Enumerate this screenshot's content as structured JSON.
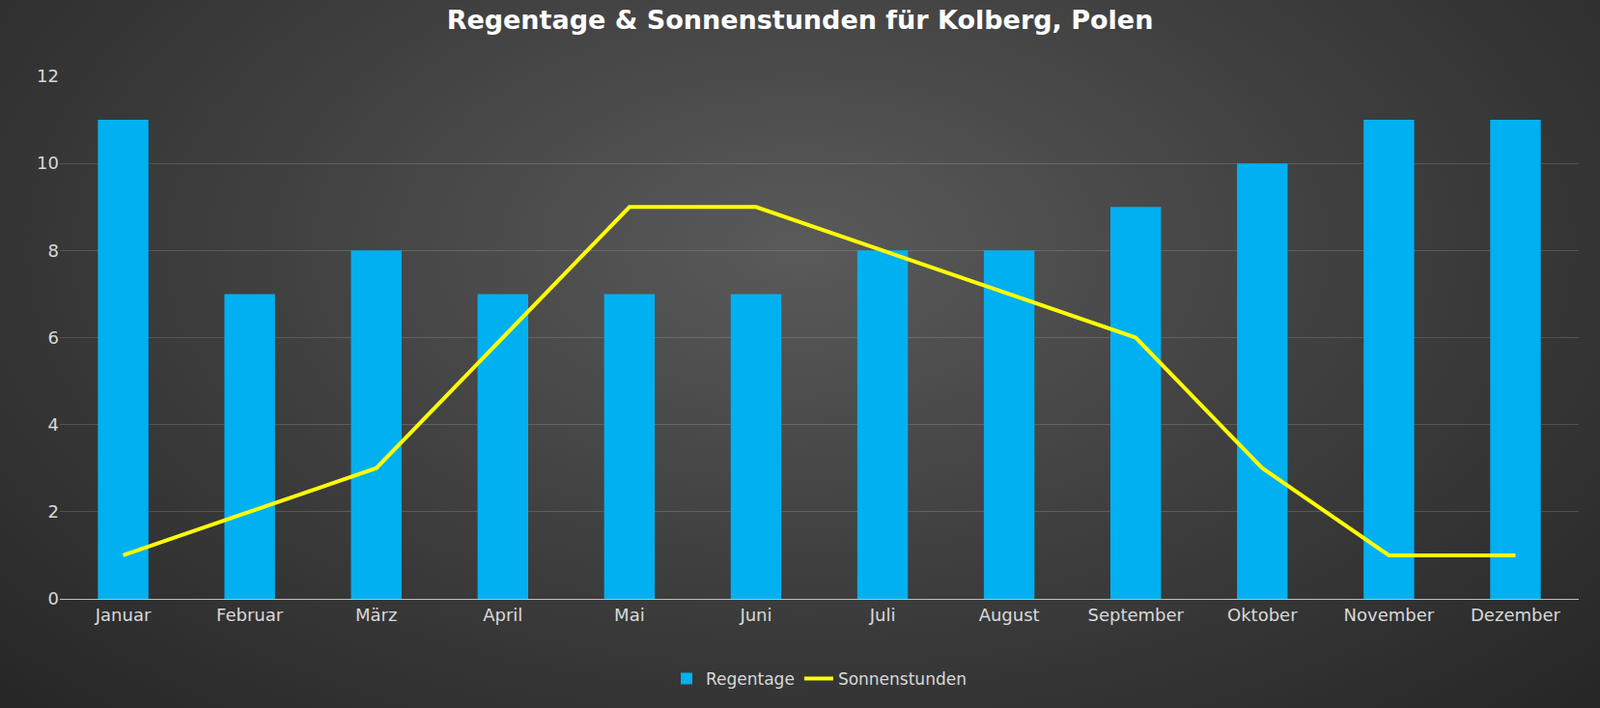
{
  "chart_data": {
    "type": "bar",
    "title": "Regentage & Sonnenstunden für Kolberg, Polen",
    "categories": [
      "Januar",
      "Februar",
      "März",
      "April",
      "Mai",
      "Juni",
      "Juli",
      "August",
      "September",
      "Oktober",
      "November",
      "Dezember"
    ],
    "series": [
      {
        "name": "Regentage",
        "type": "bar",
        "color": "#00b0f0",
        "values": [
          11,
          7,
          8,
          7,
          7,
          7,
          8,
          8,
          9,
          10,
          11,
          11
        ]
      },
      {
        "name": "Sonnenstunden",
        "type": "line",
        "color": "#ffff00",
        "values": [
          1,
          2,
          3,
          6,
          9,
          9,
          8,
          7,
          6,
          3,
          1,
          1
        ]
      }
    ],
    "ylim": [
      0,
      12
    ],
    "yticks": [
      0,
      2,
      4,
      6,
      8,
      10,
      12
    ],
    "grid": true,
    "legend": "bottom"
  }
}
